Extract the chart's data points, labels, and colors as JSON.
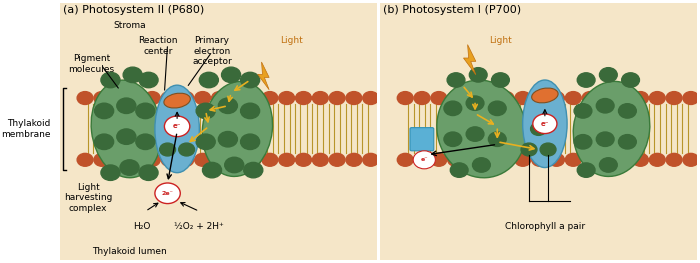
{
  "bg_color": "#f5e6c8",
  "white_bg": "#ffffff",
  "thylakoid_green": "#6a9e6a",
  "thylakoid_blue": "#6ab0d0",
  "membrane_red": "#c0522a",
  "membrane_gold": "#b8952a",
  "dot_green": "#3a6a3a",
  "reaction_center_orange": "#e07030",
  "electron_text_color": "#cc2222",
  "arrow_yellow": "#e8b020",
  "light_color": "#c07010",
  "title_a": "(a) Photosystem II (P680)",
  "title_b": "(b) Photosystem I (P700)",
  "label_stroma": "Stroma",
  "label_pigment": "Pigment\nmolecules",
  "label_reaction": "Reaction\ncenter",
  "label_primary": "Primary\nelectron\nacceptor",
  "label_light_a": "Light",
  "label_light_b": "Light",
  "label_thylakoid_membrane": "Thylakoid\nmembrane",
  "label_light_harvesting": "Light\nharvesting\ncomplex",
  "label_thylakoid_lumen": "Thylakoid lumen",
  "label_h2o": "H₂O",
  "label_o2": "½O₂ + 2H⁺",
  "label_chlorophyll": "Chlorophyll a pair",
  "font_size_title": 8,
  "font_size_label": 6.5
}
